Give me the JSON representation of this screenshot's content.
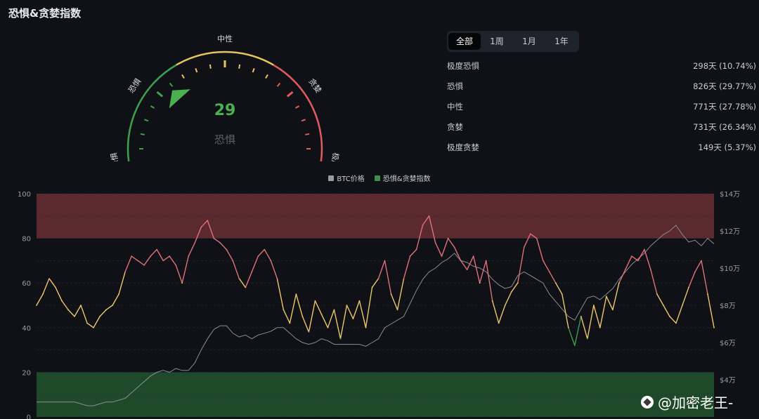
{
  "page": {
    "title": "恐惧&贪婪指数"
  },
  "gauge": {
    "value": "29",
    "value_num": 29,
    "status": "恐惧",
    "zone_labels": [
      "极度恐惧",
      "恐惧",
      "中性",
      "贪婪",
      "极度贪婪"
    ],
    "colors": {
      "fear": "#3ea04f",
      "neutral": "#e3c65f",
      "greed": "#e05a5f",
      "value": "#4caf50"
    }
  },
  "range_tabs": [
    {
      "label": "全部",
      "active": true
    },
    {
      "label": "1周",
      "active": false
    },
    {
      "label": "1月",
      "active": false
    },
    {
      "label": "1年",
      "active": false
    }
  ],
  "stats": [
    {
      "label": "极度恐惧",
      "value": "298天 (10.74%)"
    },
    {
      "label": "恐惧",
      "value": "826天 (29.77%)"
    },
    {
      "label": "中性",
      "value": "771天 (27.78%)"
    },
    {
      "label": "贪婪",
      "value": "731天 (26.34%)"
    },
    {
      "label": "极度贪婪",
      "value": "149天 (5.37%)"
    }
  ],
  "watermark": {
    "text": "@加密老王-"
  },
  "chart_data": {
    "type": "line",
    "legend": [
      "BTC价格",
      "恐惧&贪婪指数"
    ],
    "legend_position": "top-center",
    "legend_colors": [
      "#9a9ca3",
      "#3e8f4f"
    ],
    "y_left": {
      "min": 0,
      "max": 100,
      "ticks": [
        "0",
        "20",
        "40",
        "60",
        "80",
        "100"
      ]
    },
    "y_right": {
      "min": 2,
      "max": 14,
      "unit": "万",
      "ticks": [
        "$4万",
        "$6万",
        "$8万",
        "$10万",
        "$12万",
        "$14万"
      ]
    },
    "bands": [
      {
        "from": 80,
        "to": 100,
        "color": "#5a2a2f"
      },
      {
        "from": 0,
        "to": 20,
        "color": "#1f4a2a"
      }
    ],
    "thresholds": {
      "fear_below": 40,
      "greed_above": 60
    },
    "series": [
      {
        "name": "恐惧&贪婪指数",
        "axis": "left",
        "values": [
          50,
          55,
          62,
          58,
          52,
          48,
          45,
          50,
          42,
          40,
          45,
          48,
          50,
          55,
          65,
          72,
          70,
          68,
          72,
          75,
          70,
          72,
          68,
          60,
          72,
          78,
          85,
          88,
          80,
          78,
          75,
          70,
          62,
          58,
          65,
          72,
          75,
          70,
          62,
          48,
          42,
          55,
          45,
          38,
          52,
          46,
          40,
          48,
          35,
          50,
          44,
          52,
          40,
          58,
          62,
          70,
          55,
          48,
          62,
          72,
          75,
          86,
          90,
          78,
          72,
          80,
          76,
          70,
          66,
          72,
          60,
          70,
          52,
          42,
          50,
          56,
          60,
          76,
          82,
          80,
          70,
          65,
          60,
          55,
          40,
          32,
          45,
          35,
          50,
          40,
          54,
          48,
          60,
          66,
          72,
          70,
          75,
          66,
          55,
          50,
          45,
          42,
          50,
          58,
          65,
          70,
          55,
          40
        ]
      },
      {
        "name": "BTC价格",
        "axis": "right",
        "values": [
          2.8,
          2.8,
          2.8,
          2.8,
          2.8,
          2.8,
          2.8,
          2.7,
          2.6,
          2.6,
          2.7,
          2.8,
          2.8,
          2.9,
          3.0,
          3.3,
          3.6,
          3.9,
          4.2,
          4.4,
          4.5,
          4.4,
          4.6,
          4.5,
          4.5,
          4.9,
          5.6,
          6.2,
          6.7,
          6.9,
          6.9,
          6.5,
          6.3,
          6.4,
          6.2,
          6.4,
          6.5,
          6.6,
          6.8,
          6.8,
          6.5,
          6.2,
          6.0,
          5.9,
          6.0,
          6.2,
          6.1,
          5.9,
          5.9,
          5.9,
          5.9,
          5.9,
          5.8,
          6.0,
          6.2,
          6.8,
          7.0,
          7.2,
          7.4,
          8.1,
          8.8,
          9.4,
          9.8,
          10.0,
          10.3,
          10.5,
          10.8,
          10.4,
          10.3,
          10.1,
          10.0,
          9.8,
          9.4,
          9.1,
          8.9,
          9.0,
          9.6,
          9.8,
          9.6,
          9.4,
          9.2,
          8.6,
          8.2,
          7.8,
          7.4,
          7.2,
          7.8,
          8.4,
          8.5,
          8.3,
          8.6,
          8.9,
          9.4,
          9.8,
          10.2,
          10.5,
          10.8,
          11.2,
          11.5,
          11.8,
          12.0,
          12.3,
          11.8,
          11.4,
          11.5,
          11.2,
          11.6,
          11.3
        ]
      }
    ]
  }
}
